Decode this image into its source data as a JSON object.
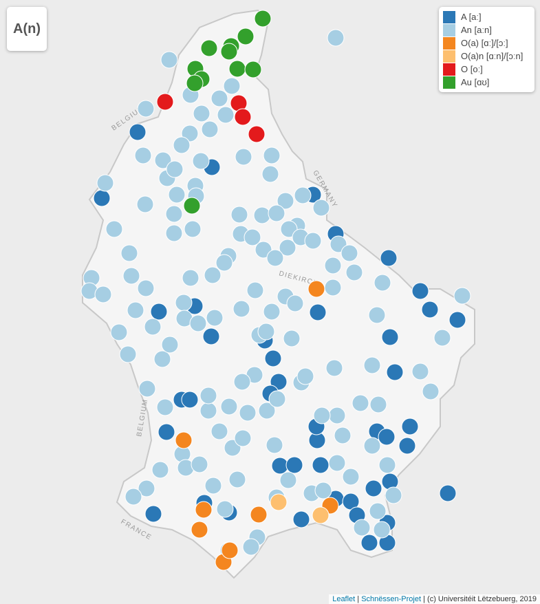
{
  "title": "A(n)",
  "legend": {
    "items": [
      {
        "label": "A [aː]",
        "color": "#2b78b6"
      },
      {
        "label": "An [aːn]",
        "color": "#a6cee3"
      },
      {
        "label": "O(a) [ɑː]/[ɔː]",
        "color": "#f4861f"
      },
      {
        "label": "O(a)n [ɑːn]/[ɔːn]",
        "color": "#fdbf6f"
      },
      {
        "label": "O [oː]",
        "color": "#e31a1c"
      },
      {
        "label": "Au [ɑʊ]",
        "color": "#33a02c"
      }
    ]
  },
  "map_labels": [
    "BELGIUM",
    "GERMANY",
    "DIEKIRCH",
    "BELGIUM",
    "FRANCE"
  ],
  "attribution": {
    "leaflet": "Leaflet",
    "project": "Schnëssen-Projet",
    "rest": "(c) Universitéit Lëtzebuerg, 2019"
  }
}
